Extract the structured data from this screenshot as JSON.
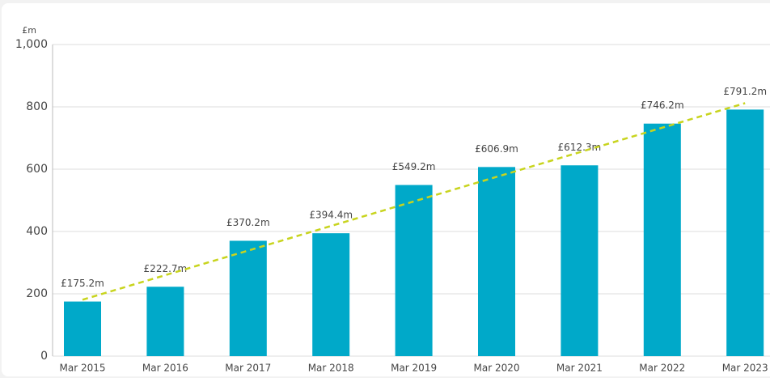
{
  "chart_data": {
    "type": "bar",
    "y_label": "£m",
    "categories": [
      "Mar 2015",
      "Mar 2016",
      "Mar 2017",
      "Mar 2018",
      "Mar 2019",
      "Mar 2020",
      "Mar 2021",
      "Mar 2022",
      "Mar 2023"
    ],
    "values": [
      175.2,
      222.7,
      370.2,
      394.4,
      549.2,
      606.9,
      612.3,
      746.2,
      791.2
    ],
    "value_labels": [
      "£175.2m",
      "£222.7m",
      "£370.2m",
      "£394.4m",
      "£549.2m",
      "£606.9m",
      "£612.3m",
      "£746.2m",
      "£791.2m"
    ],
    "color": "#00a9c9",
    "trendline": true,
    "trendline_color": "#c8d41e",
    "ylim": [
      0,
      1000
    ],
    "yticks": [
      0,
      200,
      400,
      600,
      800,
      {
        "value": 1000,
        "label": "1,000"
      }
    ],
    "grid": true
  }
}
